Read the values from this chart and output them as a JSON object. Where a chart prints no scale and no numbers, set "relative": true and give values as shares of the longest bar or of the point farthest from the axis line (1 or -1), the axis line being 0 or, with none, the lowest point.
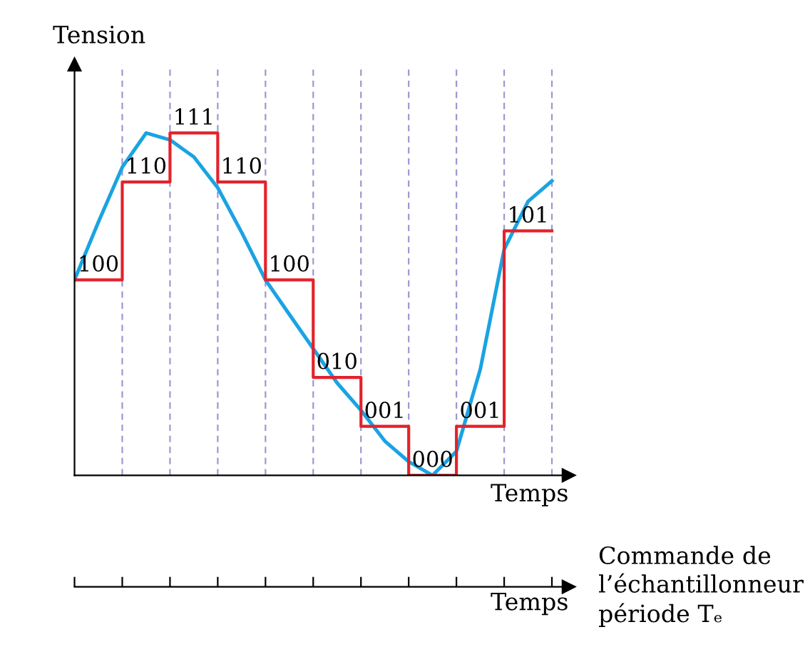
{
  "chart_data": [
    {
      "type": "line",
      "xlabel": "Temps",
      "ylabel": "Tension",
      "relative": true,
      "grid": "x",
      "categories": [
        null,
        null,
        null,
        null,
        null,
        null,
        null,
        null,
        null,
        null,
        null,
        null,
        null,
        null,
        null,
        null,
        null,
        null,
        null,
        null,
        null
      ],
      "series": [
        {
          "type": "line",
          "color": "#1aa3e2",
          "values": [
            0.571,
            0.74,
            0.9,
            1.0,
            0.98,
            0.93,
            0.84,
            0.71,
            0.571,
            0.47,
            0.37,
            0.27,
            0.19,
            0.1,
            0.04,
            0,
            0.07,
            0.31,
            0.66,
            0.8,
            0.86
          ]
        },
        {
          "type": "step",
          "color": "#e3222b",
          "values": [
            0.571,
            0.571,
            0.857,
            0.857,
            1.0,
            1.0,
            0.857,
            0.857,
            0.571,
            0.571,
            0.286,
            0.286,
            0.143,
            0.143,
            0,
            0,
            0.143,
            0.143,
            0.714,
            0.714,
            0.714
          ]
        }
      ],
      "annotations": [
        {
          "text": "100",
          "y": 0.571
        },
        {
          "text": "110",
          "y": 0.857
        },
        {
          "text": "111",
          "y": 1.0
        },
        {
          "text": "110",
          "y": 0.857
        },
        {
          "text": "100",
          "y": 0.571
        },
        {
          "text": "010",
          "y": 0.286
        },
        {
          "text": "001",
          "y": 0.143
        },
        {
          "text": "000",
          "y": 0
        },
        {
          "text": "001",
          "y": 0.143
        },
        {
          "text": "101",
          "y": 0.714
        }
      ]
    },
    {
      "type": "other",
      "xlabel": "Temps",
      "categories": [
        null,
        null,
        null,
        null,
        null,
        null,
        null,
        null,
        null,
        null,
        null
      ],
      "annotations": [
        "Commande de\nl’échantillonneur\npériode Tₑ"
      ]
    }
  ]
}
